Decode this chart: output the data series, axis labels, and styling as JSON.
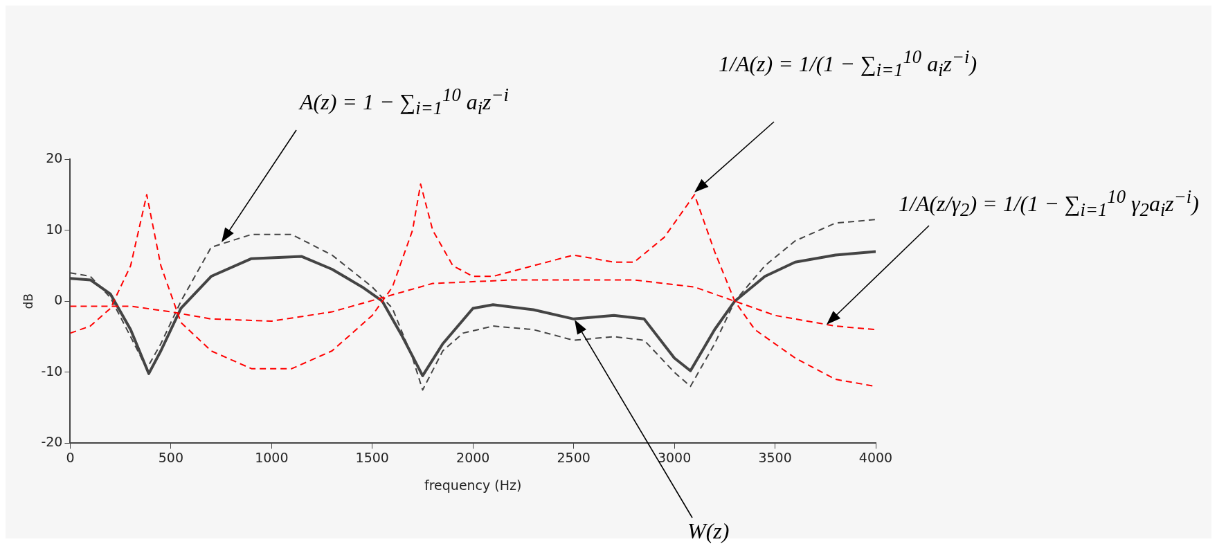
{
  "chart_data": {
    "type": "line",
    "xlabel": "frequency (Hz)",
    "ylabel": "dB",
    "xlim": [
      0,
      4000
    ],
    "xticks": [
      0,
      500,
      1000,
      1500,
      2000,
      2500,
      3000,
      3500,
      4000
    ],
    "ylim": [
      -20,
      20
    ],
    "yticks": [
      -20,
      -10,
      0,
      10,
      20
    ],
    "grid": false,
    "legend": false,
    "marker": "none",
    "series": [
      {
        "color": "#ff0000",
        "line_style": "dashed",
        "x": [
          0,
          100,
          200,
          300,
          380,
          450,
          550,
          700,
          900,
          1100,
          1300,
          1500,
          1600,
          1700,
          1740,
          1800,
          1900,
          2000,
          2100,
          2300,
          2500,
          2700,
          2800,
          2950,
          3050,
          3100,
          3200,
          3300,
          3400,
          3600,
          3800,
          4000
        ],
        "values": [
          -4.5,
          -3.5,
          -1,
          5,
          15,
          5,
          -3,
          -7,
          -9.5,
          -9.5,
          -7,
          -2,
          2,
          10,
          16.5,
          10,
          5,
          3.5,
          3.5,
          5,
          6.5,
          5.5,
          5.5,
          9,
          13,
          15,
          7,
          0,
          -4,
          -8,
          -11,
          -12
        ]
      },
      {
        "color": "#ff0000",
        "line_style": "dashed",
        "x": [
          0,
          300,
          500,
          700,
          1000,
          1300,
          1550,
          1800,
          2200,
          2800,
          3100,
          3300,
          3500,
          3800,
          4000
        ],
        "values": [
          -0.7,
          -0.7,
          -1.5,
          -2.5,
          -2.8,
          -1.5,
          0.5,
          2.5,
          3,
          3,
          2,
          0,
          -2,
          -3.5,
          -4
        ]
      },
      {
        "color": "#444444",
        "line_style": "dashed",
        "x": [
          0,
          100,
          200,
          300,
          380,
          450,
          550,
          700,
          900,
          1100,
          1300,
          1500,
          1600,
          1700,
          1750,
          1850,
          1950,
          2100,
          2300,
          2500,
          2700,
          2850,
          3000,
          3080,
          3200,
          3300,
          3450,
          3600,
          3800,
          4000
        ],
        "values": [
          4,
          3.5,
          0.5,
          -5,
          -9.5,
          -6,
          0,
          7.6,
          9.4,
          9.4,
          6.5,
          2,
          -1,
          -8,
          -12.5,
          -7,
          -4.5,
          -3.5,
          -4,
          -5.5,
          -5,
          -5.5,
          -10,
          -12,
          -6,
          0,
          5,
          8.5,
          11,
          11.5
        ]
      },
      {
        "color": "#444444",
        "line_style": "solid",
        "x": [
          0,
          100,
          200,
          300,
          390,
          450,
          550,
          700,
          900,
          1150,
          1300,
          1450,
          1550,
          1650,
          1750,
          1850,
          2000,
          2100,
          2300,
          2500,
          2700,
          2850,
          3000,
          3080,
          3200,
          3300,
          3450,
          3600,
          3800,
          4000
        ],
        "values": [
          3.2,
          3,
          1,
          -4,
          -10.2,
          -7,
          -1,
          3.5,
          6,
          6.3,
          4.5,
          2,
          0,
          -5,
          -10.5,
          -6,
          -1,
          -0.5,
          -1.2,
          -2.5,
          -2,
          -2.5,
          -8,
          -9.8,
          -4,
          0,
          3.5,
          5.5,
          6.5,
          7
        ]
      }
    ],
    "annotations": [
      "A(z) = 1 − ∑$_{i=1}$$^{10}$ a$_{i}$z$^{−i}$",
      "1/A(z) = 1/(1 − ∑$_{i=1}$$^{10}$ a$_{i}$z$^{−i}$)",
      "1/A(z/γ$_{2}$) = 1/(1 − ∑$_{i=1}$$^{10}$ γ$_{2}$a$_{i}$z$^{−i}$)",
      "W(z)"
    ]
  }
}
